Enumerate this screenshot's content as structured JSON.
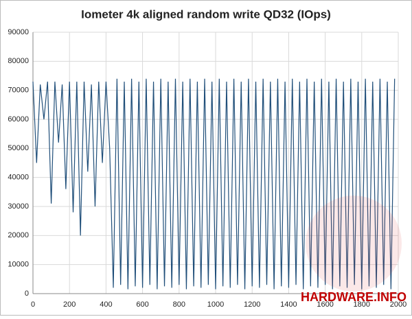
{
  "chart_data": {
    "type": "line",
    "title": "Iometer 4k aligned random write QD32 (IOps)",
    "watermark": "HARDWARE.INFO",
    "x": [
      0,
      20,
      40,
      60,
      80,
      100,
      120,
      140,
      160,
      180,
      200,
      220,
      240,
      260,
      280,
      300,
      320,
      340,
      360,
      380,
      400,
      420,
      440,
      460,
      480,
      500,
      520,
      540,
      560,
      580,
      600,
      620,
      640,
      660,
      680,
      700,
      720,
      740,
      760,
      780,
      800,
      820,
      840,
      860,
      880,
      900,
      920,
      940,
      960,
      980,
      1000,
      1020,
      1040,
      1060,
      1080,
      1100,
      1120,
      1140,
      1160,
      1180,
      1200,
      1220,
      1240,
      1260,
      1280,
      1300,
      1320,
      1340,
      1360,
      1380,
      1400,
      1420,
      1440,
      1460,
      1480,
      1500,
      1520,
      1540,
      1560,
      1580,
      1600,
      1620,
      1640,
      1660,
      1680,
      1700,
      1720,
      1740,
      1760,
      1780,
      1800,
      1820,
      1840,
      1860,
      1880,
      1900,
      1920,
      1940,
      1960,
      1980
    ],
    "series": [
      {
        "name": "IOps",
        "color": "#1f4e79",
        "values": [
          73000,
          45000,
          72000,
          60000,
          73000,
          31000,
          73000,
          52000,
          72000,
          36000,
          73000,
          28000,
          73000,
          20000,
          73000,
          42000,
          72000,
          30000,
          73000,
          45000,
          73000,
          50000,
          2000,
          74000,
          3000,
          73000,
          1500,
          74000,
          2500,
          73000,
          2000,
          74000,
          3000,
          73000,
          1500,
          74000,
          2500,
          73000,
          2000,
          74000,
          3000,
          73000,
          1500,
          74000,
          2500,
          73000,
          2000,
          74000,
          3000,
          73000,
          1500,
          74000,
          2500,
          73000,
          2000,
          74000,
          3000,
          73000,
          1500,
          74000,
          2500,
          73000,
          2000,
          74000,
          3000,
          73000,
          1500,
          74000,
          2500,
          73000,
          2000,
          74000,
          3000,
          73000,
          1500,
          74000,
          2500,
          73000,
          2000,
          74000,
          3000,
          73000,
          1500,
          74000,
          2500,
          73000,
          2000,
          74000,
          3000,
          73000,
          1500,
          74000,
          2500,
          73000,
          2000,
          74000,
          3000,
          73000,
          1500,
          74000
        ]
      }
    ],
    "xlim": [
      0,
      2000
    ],
    "xticks": [
      0,
      200,
      400,
      600,
      800,
      1000,
      1200,
      1400,
      1600,
      1800,
      2000
    ],
    "ylim": [
      0,
      90000
    ],
    "yticks": [
      0,
      10000,
      20000,
      30000,
      40000,
      50000,
      60000,
      70000,
      80000,
      90000
    ],
    "grid": true
  }
}
